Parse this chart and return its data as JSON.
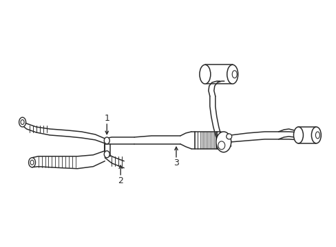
{
  "background_color": "#ffffff",
  "line_color": "#2a2a2a",
  "lw": 1.0,
  "label_1": "1",
  "label_2": "2",
  "label_3": "3",
  "label_fontsize": 9,
  "figsize": [
    4.89,
    3.6
  ],
  "dpi": 100,
  "xlim": [
    0,
    489
  ],
  "ylim": [
    360,
    0
  ]
}
